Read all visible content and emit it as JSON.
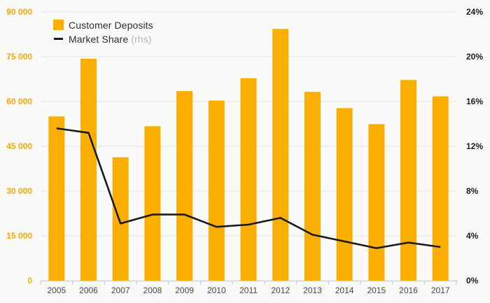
{
  "legend": {
    "deposits_label": "Customer Deposits",
    "share_label": "Market Share",
    "share_suffix": "(rhs)"
  },
  "colors": {
    "bar": "#faaf00",
    "line": "#1a1a1a",
    "left_axis_text": "#f5a800",
    "right_axis_text": "#1a1a1a",
    "category_text": "#474747",
    "gridline": "#e8e8e5",
    "axis_line": "#c7cee2",
    "background": "#fafaf8",
    "legend_text": "#2e2e2e",
    "rhs_suffix_text": "#b4b4b2"
  },
  "chart_data": {
    "type": "bar",
    "subtype": "combo-bar-line-dual-axis",
    "title": "",
    "categories": [
      "2005",
      "2006",
      "2007",
      "2008",
      "2009",
      "2010",
      "2011",
      "2012",
      "2013",
      "2014",
      "2015",
      "2016",
      "2017"
    ],
    "series": [
      {
        "name": "Customer Deposits",
        "type": "bar",
        "axis": "left",
        "color": "#faaf00",
        "values": [
          55000,
          74300,
          41300,
          51700,
          63500,
          60300,
          67800,
          84300,
          63200,
          57800,
          52400,
          67200,
          61700
        ]
      },
      {
        "name": "Market Share (rhs)",
        "type": "line",
        "axis": "right",
        "color": "#1a1a1a",
        "values": [
          13.6,
          13.2,
          5.1,
          5.9,
          5.9,
          4.8,
          5.0,
          5.6,
          4.1,
          3.5,
          2.9,
          3.4,
          3.0
        ]
      }
    ],
    "left_axis": {
      "min": 0,
      "max": 90000,
      "tick_step": 15000,
      "tick_labels": [
        "0",
        "15 000",
        "30 000",
        "45 000",
        "60 000",
        "75 000",
        "90 000"
      ]
    },
    "right_axis": {
      "min": 0,
      "max": 24,
      "tick_step": 4,
      "tick_labels": [
        "0%",
        "4%",
        "8%",
        "12%",
        "16%",
        "20%",
        "24%"
      ]
    },
    "grid": "horizontal",
    "legend_position": "top-left"
  }
}
